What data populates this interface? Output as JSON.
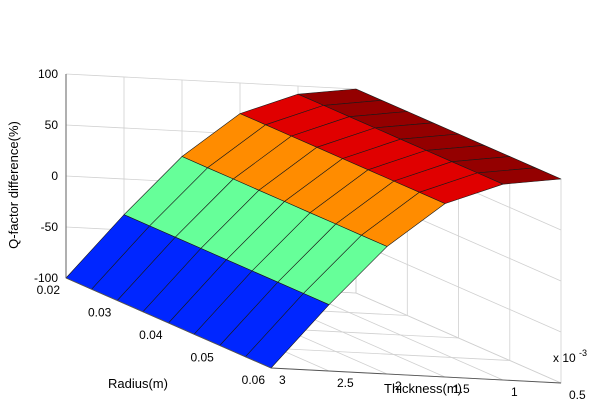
{
  "chart_data": {
    "type": "surface",
    "title": "",
    "zlabel": "Q-factor difference(%)",
    "ylabel": "Radius(m)",
    "xlabel": "Thickness(m)",
    "x_multiplier_label": "x 10",
    "x_multiplier_exponent": "-3",
    "z_ticks": [
      "-100",
      "-50",
      "0",
      "50",
      "100"
    ],
    "radius_ticks": [
      "0.02",
      "0.03",
      "0.04",
      "0.05",
      "0.06"
    ],
    "thickness_ticks": [
      "0.5",
      "1",
      "1.5",
      "2",
      "2.5",
      "3"
    ],
    "zlim": [
      -100,
      100
    ],
    "radius_range": [
      0.02,
      0.06
    ],
    "thickness_range_e3": [
      0.5,
      3
    ],
    "grid": true,
    "colormap": "jet",
    "radius": [
      0.02,
      0.025,
      0.03,
      0.035,
      0.04,
      0.045,
      0.05,
      0.055,
      0.06
    ],
    "thickness_e3": [
      3.0,
      2.5,
      2.0,
      1.5,
      1.0,
      0.5
    ],
    "q_factor_difference": [
      [
        -100,
        -35,
        25,
        70,
        92,
        100
      ],
      [
        -100,
        -35,
        25,
        70,
        92,
        100
      ],
      [
        -100,
        -35,
        25,
        70,
        92,
        100
      ],
      [
        -100,
        -35,
        25,
        70,
        92,
        100
      ],
      [
        -100,
        -35,
        25,
        70,
        92,
        100
      ],
      [
        -100,
        -35,
        25,
        70,
        92,
        100
      ],
      [
        -100,
        -35,
        25,
        70,
        92,
        100
      ],
      [
        -100,
        -35,
        25,
        70,
        92,
        100
      ],
      [
        -100,
        -35,
        25,
        70,
        92,
        100
      ]
    ]
  }
}
